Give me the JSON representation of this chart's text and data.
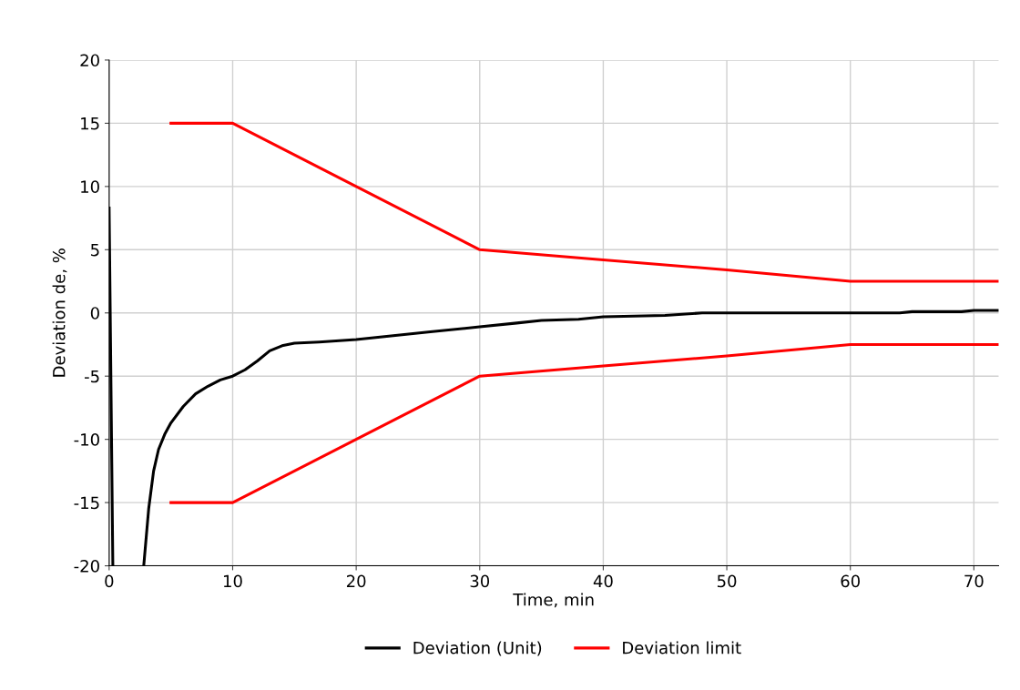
{
  "chart_data": {
    "type": "line",
    "xlabel": "Time, min",
    "ylabel": "Deviation de, %",
    "xlim": [
      0,
      72
    ],
    "xticks": [
      0,
      10,
      20,
      30,
      40,
      50,
      60,
      70
    ],
    "ylim": [
      -20,
      20
    ],
    "yticks": [
      -20,
      -15,
      -10,
      -5,
      0,
      5,
      10,
      15,
      20
    ],
    "grid": true,
    "legend": "bottom",
    "marker": "none",
    "line_style": "solid",
    "series": [
      {
        "name": "Deviation (Unit)",
        "color": "#000000",
        "x": [
          0,
          0.3,
          0.31,
          2.8,
          3.2,
          3.6,
          4,
          4.5,
          5,
          6,
          7,
          8,
          9,
          10,
          11,
          12,
          13,
          14,
          15,
          17,
          20,
          23,
          26,
          30,
          33,
          35,
          38,
          40,
          45,
          48,
          60,
          64,
          65,
          69,
          70,
          72
        ],
        "values": [
          8.3,
          -20,
          null,
          -20,
          -15.5,
          -12.5,
          -10.8,
          -9.6,
          -8.7,
          -7.4,
          -6.4,
          -5.8,
          -5.3,
          -5,
          -4.5,
          -3.8,
          -3,
          -2.6,
          -2.4,
          -2.3,
          -2.1,
          -1.8,
          -1.5,
          -1.1,
          -0.8,
          -0.6,
          -0.5,
          -0.3,
          -0.2,
          0,
          0,
          0,
          0.1,
          0.1,
          0.2,
          0.2
        ]
      },
      {
        "name": "Deviation limit",
        "color": "#ff0000",
        "x": [
          5,
          10,
          20,
          30,
          40,
          50,
          60,
          72
        ],
        "values": [
          15,
          15,
          10,
          5,
          4.2,
          3.4,
          2.5,
          2.5
        ]
      },
      {
        "color": "#ff0000",
        "x": [
          5,
          10,
          20,
          30,
          40,
          50,
          60,
          72
        ],
        "values": [
          -15,
          -15,
          -10,
          -5,
          -4.2,
          -3.4,
          -2.5,
          -2.5
        ]
      }
    ]
  }
}
